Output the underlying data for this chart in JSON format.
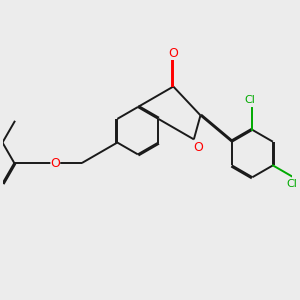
{
  "background_color": "#ececec",
  "bond_color": "#1a1a1a",
  "oxygen_color": "#ff0000",
  "chlorine_color": "#00aa00",
  "lw": 1.4,
  "dbo": 0.018,
  "figsize": [
    3.0,
    3.0
  ],
  "dpi": 100,
  "xlim": [
    -2.8,
    3.2
  ],
  "ylim": [
    -3.0,
    2.2
  ]
}
